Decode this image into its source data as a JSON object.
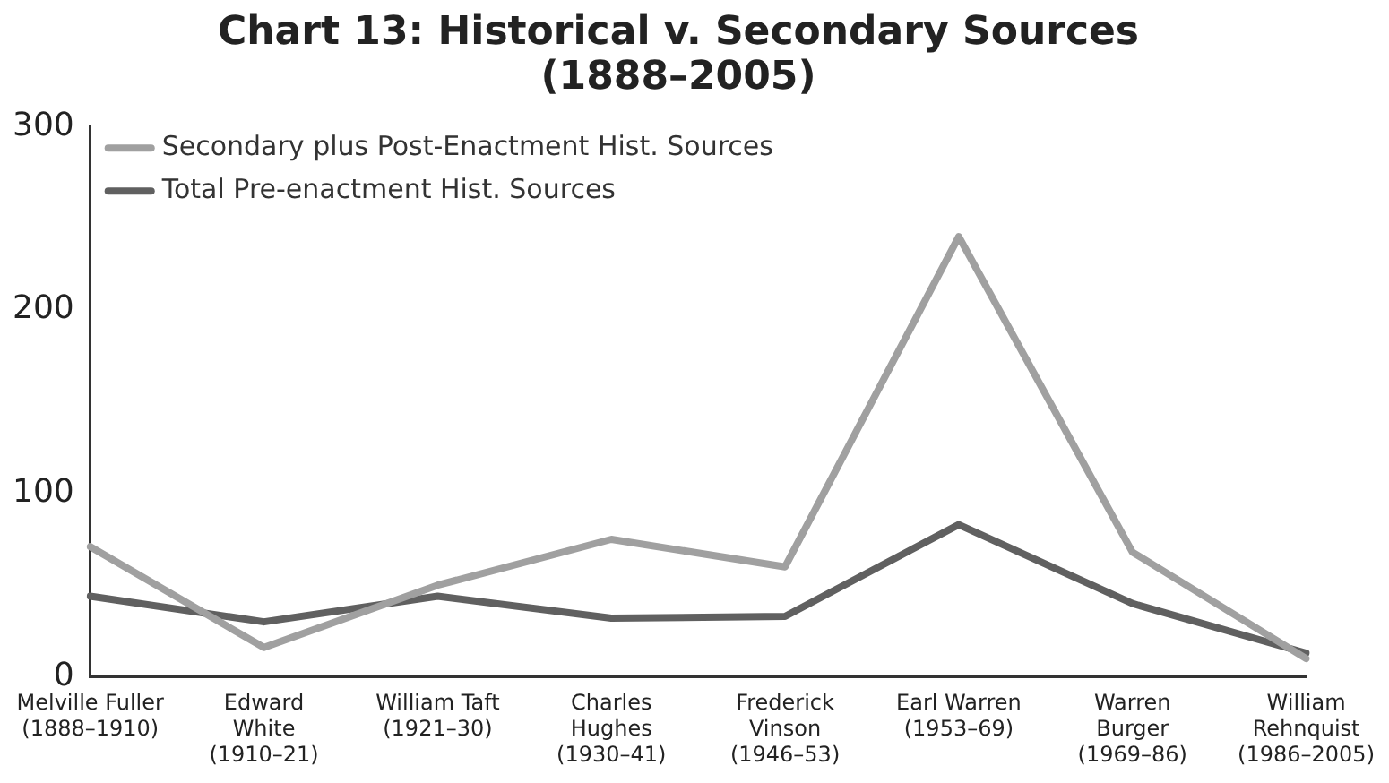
{
  "chart_data": {
    "type": "line",
    "title": "Chart 13: Historical v. Secondary Sources\n(1888–2005)",
    "categories": [
      "Melville Fuller\n(1888–1910)",
      "Edward\nWhite\n(1910–21)",
      "William Taft\n(1921–30)",
      "Charles\nHughes\n(1930–41)",
      "Frederick\nVinson\n(1946–53)",
      "Earl Warren\n(1953–69)",
      "Warren\nBurger\n(1969–86)",
      "William\nRehnquist\n(1986–2005)"
    ],
    "series": [
      {
        "name": "Secondary plus Post-Enactment Hist. Sources",
        "color": "#a0a0a0",
        "values": [
          71,
          16,
          50,
          75,
          60,
          240,
          68,
          10
        ]
      },
      {
        "name": "Total Pre-enactment Hist. Sources",
        "color": "#606060",
        "values": [
          44,
          30,
          44,
          32,
          33,
          83,
          40,
          13
        ]
      }
    ],
    "ylim": [
      0,
      300
    ],
    "yticks": [
      0,
      100,
      200,
      300
    ],
    "grid": false,
    "legend": "top left",
    "marker": "none",
    "line_style": "solid"
  }
}
